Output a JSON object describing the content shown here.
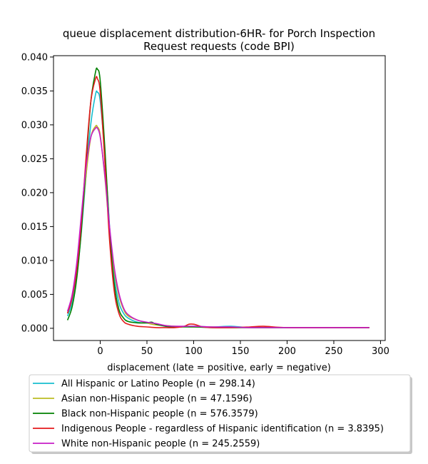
{
  "chart_data": {
    "type": "line",
    "title_lines": [
      "queue displacement distribution-6HR-  for Porch Inspection",
      "Request  requests (code BPI)"
    ],
    "xlabel": "displacement (late = positive, early = negative)",
    "ylabel": "",
    "xlim": [
      -50,
      305
    ],
    "ylim": [
      -0.0018,
      0.0402
    ],
    "xticks": [
      0,
      50,
      100,
      150,
      200,
      250,
      300
    ],
    "xtick_labels": [
      "0",
      "50",
      "100",
      "150",
      "200",
      "250",
      "300"
    ],
    "yticks": [
      0,
      0.005,
      0.01,
      0.015,
      0.02,
      0.025,
      0.03,
      0.035,
      0.04
    ],
    "ytick_labels": [
      "0.000",
      "0.005",
      "0.010",
      "0.015",
      "0.020",
      "0.025",
      "0.030",
      "0.035",
      "0.040"
    ],
    "grid": false,
    "legend_position": "bottom, below plot",
    "series": [
      {
        "name": "All Hispanic or Latino People (n = 298.14)",
        "color": "#17becf",
        "x": [
          -35,
          -30,
          -25,
          -20,
          -15,
          -10,
          -5,
          -3,
          0,
          5,
          10,
          15,
          20,
          25,
          30,
          40,
          50,
          55,
          60,
          70,
          80,
          100,
          120,
          140,
          160,
          200,
          250,
          288
        ],
        "y": [
          0.0018,
          0.0038,
          0.0078,
          0.0145,
          0.0228,
          0.0302,
          0.0345,
          0.0348,
          0.0335,
          0.0255,
          0.015,
          0.0075,
          0.0038,
          0.0022,
          0.0015,
          0.0009,
          0.0008,
          0.0008,
          0.0006,
          0.0003,
          0.0002,
          0.0003,
          0.0002,
          0.0003,
          0.0001,
          0.0001,
          0.0001,
          0.0001
        ]
      },
      {
        "name": "Asian non-Hispanic people (n = 47.1596)",
        "color": "#bcbd22",
        "x": [
          -35,
          -30,
          -25,
          -20,
          -15,
          -10,
          -5,
          -3,
          0,
          5,
          10,
          15,
          20,
          25,
          30,
          40,
          50,
          55,
          60,
          70,
          80,
          100,
          120,
          140,
          160,
          200,
          250,
          288
        ],
        "y": [
          0.0022,
          0.0045,
          0.0088,
          0.0155,
          0.0228,
          0.0282,
          0.0298,
          0.0297,
          0.0285,
          0.0222,
          0.0145,
          0.0085,
          0.0048,
          0.0028,
          0.0018,
          0.0012,
          0.0008,
          0.0006,
          0.0005,
          0.0004,
          0.0003,
          0.0002,
          0.0002,
          0.0001,
          0.0001,
          0.0001,
          0.0001,
          0.0001
        ]
      },
      {
        "name": "Black non-Hispanic people (n = 576.3579)",
        "color": "#008000",
        "x": [
          -35,
          -30,
          -25,
          -20,
          -15,
          -10,
          -5,
          -3,
          0,
          5,
          10,
          15,
          20,
          25,
          30,
          40,
          50,
          55,
          60,
          70,
          80,
          100,
          120,
          140,
          160,
          200,
          250,
          288
        ],
        "y": [
          0.0012,
          0.0032,
          0.0075,
          0.0148,
          0.0245,
          0.0335,
          0.0378,
          0.0382,
          0.0365,
          0.0265,
          0.0145,
          0.0065,
          0.0028,
          0.0015,
          0.001,
          0.0008,
          0.0008,
          0.0009,
          0.0006,
          0.0003,
          0.0002,
          0.0002,
          0.0001,
          0.0001,
          0.0001,
          0.0001,
          0.0001,
          0.0001
        ]
      },
      {
        "name": "Indigenous People - regardless of Hispanic identification (n = 3.8395)",
        "color": "#e41a1c",
        "x": [
          -35,
          -30,
          -25,
          -20,
          -15,
          -10,
          -5,
          -3,
          0,
          5,
          10,
          15,
          20,
          25,
          30,
          40,
          50,
          60,
          70,
          80,
          90,
          95,
          100,
          105,
          110,
          120,
          140,
          160,
          175,
          200,
          250,
          288
        ],
        "y": [
          0.0022,
          0.0045,
          0.0088,
          0.016,
          0.0255,
          0.0335,
          0.0368,
          0.0368,
          0.0348,
          0.0245,
          0.013,
          0.0055,
          0.0022,
          0.001,
          0.0006,
          0.0003,
          0.0002,
          0.0001,
          0.0001,
          0.0001,
          0.0003,
          0.0006,
          0.0006,
          0.0004,
          0.0002,
          0.0001,
          0.0001,
          0.0002,
          0.0003,
          0.0001,
          0.0001,
          0.0001
        ]
      },
      {
        "name": "White non-Hispanic people (n = 245.2559)",
        "color": "#c71ec7",
        "x": [
          -35,
          -30,
          -25,
          -20,
          -15,
          -10,
          -5,
          -3,
          0,
          5,
          10,
          15,
          20,
          25,
          30,
          40,
          50,
          55,
          60,
          70,
          80,
          100,
          120,
          140,
          160,
          200,
          250,
          288
        ],
        "y": [
          0.0025,
          0.005,
          0.0098,
          0.017,
          0.024,
          0.0282,
          0.0295,
          0.0295,
          0.0282,
          0.0225,
          0.015,
          0.009,
          0.0052,
          0.003,
          0.002,
          0.0012,
          0.0009,
          0.0008,
          0.0007,
          0.0004,
          0.0003,
          0.0003,
          0.0002,
          0.0002,
          0.0001,
          0.0001,
          0.0001,
          0.0001
        ]
      }
    ]
  }
}
